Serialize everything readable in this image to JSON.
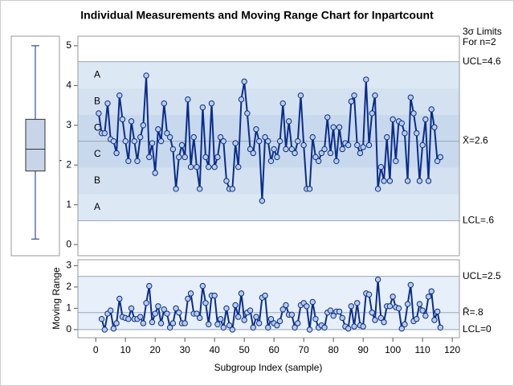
{
  "chart_data": [
    {
      "type": "line",
      "title": "Individual Measurements and Moving Range Chart for Inpartcount",
      "ylabel": "Inpartcount",
      "limits_title": "3σ Limits",
      "limits_subtitle": "For n=2",
      "ylim": [
        -0.28,
        5.24
      ],
      "yticks": [
        0,
        1,
        2,
        3,
        4,
        5
      ],
      "xlim": [
        -6,
        122.4
      ],
      "limits": [
        {
          "value": 4.6,
          "label": "UCL=4.6"
        },
        {
          "value": 2.6,
          "label": "X̄=2.6"
        },
        {
          "value": 0.6,
          "label": "LCL=.6"
        }
      ],
      "zone_labels": [
        "A",
        "B",
        "C",
        "C",
        "B",
        "A"
      ],
      "color": "#0a2d8c",
      "marker_color": "#b9cde6",
      "x": [
        1,
        2,
        3,
        4,
        5,
        6,
        7,
        8,
        9,
        10,
        11,
        12,
        13,
        14,
        15,
        16,
        17,
        18,
        19,
        20,
        21,
        22,
        23,
        24,
        25,
        26,
        27,
        28,
        29,
        30,
        31,
        32,
        33,
        34,
        35,
        36,
        37,
        38,
        39,
        40,
        41,
        42,
        43,
        44,
        45,
        46,
        47,
        48,
        49,
        50,
        51,
        52,
        53,
        54,
        55,
        56,
        57,
        58,
        59,
        60,
        61,
        62,
        63,
        64,
        65,
        66,
        67,
        68,
        69,
        70,
        71,
        72,
        73,
        74,
        75,
        76,
        77,
        78,
        79,
        80,
        81,
        82,
        83,
        84,
        85,
        86,
        87,
        88,
        89,
        90,
        91,
        92,
        93,
        94,
        95,
        96,
        97,
        98,
        99,
        100,
        101,
        102,
        103,
        104,
        105,
        106,
        107,
        108,
        109,
        110,
        111,
        112,
        113,
        114,
        115,
        116
      ],
      "values": [
        3.3,
        2.8,
        2.8,
        3.55,
        2.65,
        2.6,
        2.3,
        3.75,
        3.15,
        2.6,
        2.1,
        3.1,
        2.6,
        2.1,
        2.7,
        3.0,
        4.25,
        2.2,
        2.55,
        1.8,
        2.9,
        2.6,
        3.55,
        2.8,
        2.7,
        2.4,
        1.4,
        2.2,
        2.5,
        2.2,
        3.65,
        1.95,
        2.7,
        1.95,
        1.4,
        3.45,
        2.2,
        1.95,
        3.55,
        1.95,
        2.2,
        2.7,
        2.6,
        1.6,
        1.4,
        1.4,
        2.55,
        1.95,
        3.65,
        4.1,
        3.3,
        2.4,
        2.3,
        2.9,
        2.6,
        1.1,
        2.7,
        2.6,
        2.1,
        2.4,
        2.2,
        2.6,
        3.55,
        2.4,
        3.1,
        2.4,
        2.3,
        2.6,
        3.75,
        2.5,
        1.4,
        1.4,
        2.7,
        2.2,
        2.1,
        2.3,
        2.4,
        3.2,
        2.3,
        2.95,
        2.1,
        2.95,
        2.4,
        2.55,
        2.5,
        3.6,
        3.75,
        2.5,
        2.3,
        2.45,
        4.15,
        2.5,
        3.3,
        3.75,
        1.4,
        1.95,
        1.6,
        2.7,
        1.6,
        3.15,
        2.1,
        3.1,
        3.05,
        2.8,
        1.6,
        3.7,
        3.3,
        2.8,
        1.6,
        2.5,
        3.15,
        1.6,
        3.4,
        2.95,
        2.1,
        2.2
      ],
      "boxplot": {
        "min": 0.14,
        "q1": 1.85,
        "median": 2.4,
        "q3": 3.15,
        "max": 5.0
      }
    },
    {
      "type": "line",
      "ylabel": "Moving Range",
      "xlabel": "Subgroup Index (sample)",
      "ylim": [
        -0.38,
        3.28
      ],
      "yticks": [
        0,
        1,
        2,
        3
      ],
      "xlim": [
        -6,
        122.4
      ],
      "xticks": [
        0,
        10,
        20,
        30,
        40,
        50,
        60,
        70,
        80,
        90,
        100,
        110,
        120
      ],
      "limits": [
        {
          "value": 2.5,
          "label": "UCL=2.5"
        },
        {
          "value": 0.8,
          "label": "R̄=.8"
        },
        {
          "value": 0,
          "label": "LCL=0"
        }
      ],
      "color": "#0a2d8c",
      "marker_color": "#b9cde6",
      "x": [
        2,
        3,
        4,
        5,
        6,
        7,
        8,
        9,
        10,
        11,
        12,
        13,
        14,
        15,
        16,
        17,
        18,
        19,
        20,
        21,
        22,
        23,
        24,
        25,
        26,
        27,
        28,
        29,
        30,
        31,
        32,
        33,
        34,
        35,
        36,
        37,
        38,
        39,
        40,
        41,
        42,
        43,
        44,
        45,
        46,
        47,
        48,
        49,
        50,
        51,
        52,
        53,
        54,
        55,
        56,
        57,
        58,
        59,
        60,
        61,
        62,
        63,
        64,
        65,
        66,
        67,
        68,
        69,
        70,
        71,
        72,
        73,
        74,
        75,
        76,
        77,
        78,
        79,
        80,
        81,
        82,
        83,
        84,
        85,
        86,
        87,
        88,
        89,
        90,
        91,
        92,
        93,
        94,
        95,
        96,
        97,
        98,
        99,
        100,
        101,
        102,
        103,
        104,
        105,
        106,
        107,
        108,
        109,
        110,
        111,
        112,
        113,
        114,
        115,
        116
      ],
      "values": [
        0.5,
        0,
        0.75,
        0.9,
        0.05,
        0.3,
        1.45,
        0.6,
        0.55,
        0.5,
        1.0,
        0.5,
        0.5,
        0.6,
        0.3,
        1.25,
        2.05,
        0.35,
        0.75,
        1.1,
        0.3,
        0.95,
        0.75,
        0.1,
        0.3,
        1.0,
        0.8,
        0.3,
        0.3,
        1.45,
        1.7,
        0.75,
        0.75,
        0.55,
        2.05,
        1.25,
        0.25,
        1.6,
        1.6,
        0.25,
        0.5,
        0.1,
        1.0,
        0.2,
        0,
        1.15,
        0.6,
        1.7,
        0.45,
        0.8,
        0.9,
        0.1,
        0.6,
        0.3,
        1.5,
        1.6,
        0.1,
        0.5,
        0.3,
        0.2,
        0.4,
        0.95,
        1.15,
        0.7,
        0.7,
        0.1,
        0.3,
        1.15,
        1.25,
        1.1,
        0,
        1.3,
        0.5,
        0.1,
        0.2,
        0.1,
        0.8,
        0.9,
        0.65,
        0.85,
        0.85,
        0.55,
        0.15,
        0.05,
        1.1,
        0.15,
        1.25,
        0.2,
        0.15,
        1.7,
        1.65,
        0.8,
        0.45,
        2.35,
        0.55,
        0.35,
        1.1,
        1.1,
        1.55,
        1.05,
        1.0,
        0.05,
        0.25,
        1.2,
        2.1,
        0.4,
        0.5,
        1.2,
        0.9,
        0.65,
        1.55,
        1.8,
        0.45,
        0.85,
        0.1
      ]
    }
  ]
}
